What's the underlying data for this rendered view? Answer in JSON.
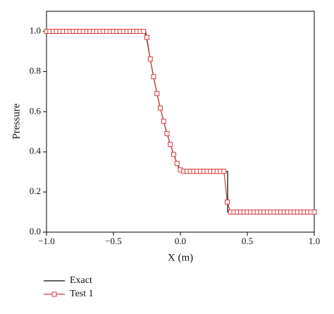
{
  "chart_data": {
    "type": "line",
    "xlabel": "X (m)",
    "ylabel": "Pressure",
    "xlim": [
      -1,
      1
    ],
    "ylim": [
      0,
      1.1
    ],
    "xticks": [
      {
        "value": -1,
        "label": "−1.0"
      },
      {
        "value": -0.5,
        "label": "−0.5"
      },
      {
        "value": 0,
        "label": "0.0"
      },
      0.5,
      {
        "value": 1,
        "label": "1.0"
      }
    ],
    "yticks": [
      {
        "value": 0,
        "label": "0.0"
      },
      0.2,
      0.4,
      0.6,
      0.8,
      {
        "value": 1,
        "label": "1.0"
      }
    ],
    "legend": "bottom-left",
    "series": [
      {
        "name": "Exact",
        "color": "#000000",
        "x": [
          -1,
          -0.26,
          -0.234,
          -0.208,
          -0.182,
          -0.156,
          -0.13,
          -0.104,
          -0.078,
          -0.052,
          -0.026,
          0,
          0.353,
          0.353,
          1
        ],
        "values": [
          1,
          1,
          0.895,
          0.8,
          0.713,
          0.635,
          0.564,
          0.5,
          0.443,
          0.391,
          0.344,
          0.302,
          0.302,
          0.1,
          0.1
        ]
      },
      {
        "name": "Test 1",
        "color": "#d9383a",
        "marker": "square",
        "x": [
          -1,
          -0.975,
          -0.95,
          -0.925,
          -0.9,
          -0.875,
          -0.85,
          -0.825,
          -0.8,
          -0.775,
          -0.75,
          -0.725,
          -0.7,
          -0.675,
          -0.65,
          -0.625,
          -0.6,
          -0.575,
          -0.55,
          -0.525,
          -0.5,
          -0.475,
          -0.45,
          -0.425,
          -0.4,
          -0.375,
          -0.35,
          -0.325,
          -0.3,
          -0.275,
          -0.25,
          -0.225,
          -0.2,
          -0.175,
          -0.15,
          -0.125,
          -0.1,
          -0.075,
          -0.05,
          -0.025,
          0,
          0.025,
          0.05,
          0.075,
          0.1,
          0.125,
          0.15,
          0.175,
          0.2,
          0.225,
          0.25,
          0.275,
          0.3,
          0.325,
          0.35,
          0.375,
          0.4,
          0.425,
          0.45,
          0.475,
          0.5,
          0.525,
          0.55,
          0.575,
          0.6,
          0.625,
          0.65,
          0.675,
          0.7,
          0.725,
          0.75,
          0.775,
          0.8,
          0.825,
          0.85,
          0.875,
          0.9,
          0.925,
          0.95,
          0.975,
          1
        ],
        "values": [
          1,
          1,
          1,
          1,
          1,
          1,
          1,
          1,
          1,
          1,
          1,
          1,
          1,
          1,
          1,
          1,
          1,
          1,
          1,
          1,
          1,
          1,
          1,
          1,
          1,
          1,
          1,
          1,
          1,
          1,
          0.97,
          0.862,
          0.774,
          0.69,
          0.618,
          0.552,
          0.491,
          0.437,
          0.387,
          0.342,
          0.31,
          0.303,
          0.303,
          0.303,
          0.303,
          0.303,
          0.303,
          0.303,
          0.303,
          0.303,
          0.303,
          0.303,
          0.303,
          0.303,
          0.15,
          0.1,
          0.1,
          0.1,
          0.1,
          0.1,
          0.1,
          0.1,
          0.1,
          0.1,
          0.1,
          0.1,
          0.1,
          0.1,
          0.1,
          0.1,
          0.1,
          0.1,
          0.1,
          0.1,
          0.1,
          0.1,
          0.1,
          0.1,
          0.1,
          0.1,
          0.1
        ]
      }
    ]
  }
}
